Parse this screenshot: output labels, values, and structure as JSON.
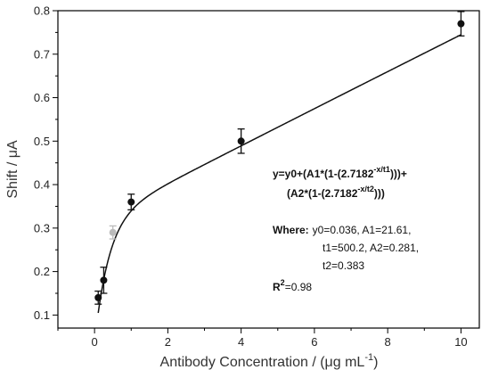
{
  "chart_data": {
    "type": "scatter",
    "xlabel": "Antibody Concentration / (μg mL",
    "xlabel_sup": "-1",
    "xlabel_end": ")",
    "ylabel": "Shift / μA",
    "xlim": [
      -1,
      10.5
    ],
    "ylim": [
      0.07,
      0.8
    ],
    "x_ticks": [
      0,
      2,
      4,
      6,
      8,
      10
    ],
    "y_ticks": [
      0.1,
      0.2,
      0.3,
      0.4,
      0.5,
      0.6,
      0.7,
      0.8
    ],
    "x_tick_labels": [
      "0",
      "2",
      "4",
      "6",
      "8",
      "10"
    ],
    "y_tick_labels": [
      "0.1",
      "0.2",
      "0.3",
      "0.4",
      "0.5",
      "0.6",
      "0.7",
      "0.8"
    ],
    "points": [
      {
        "x": 0.1,
        "y": 0.14,
        "err": 0.015
      },
      {
        "x": 0.25,
        "y": 0.18,
        "err": 0.03
      },
      {
        "x": 1.0,
        "y": 0.36,
        "err": 0.018
      },
      {
        "x": 4.0,
        "y": 0.5,
        "err": 0.028
      },
      {
        "x": 10.0,
        "y": 0.77,
        "err": 0.028
      }
    ],
    "faint_points": [
      {
        "x": 0.5,
        "y": 0.29,
        "err": 0.015
      }
    ],
    "fit": {
      "y0": 0.036,
      "A1": 21.61,
      "t1": 500.2,
      "A2": 0.281,
      "t2": 0.383
    },
    "colors": {
      "marker": "#111111",
      "faint": "#bbbbbb",
      "fit_line": "#111111"
    },
    "annotation": {
      "eq_line1": "y=y0+(A1*(1-(2.7182",
      "eq_line1_sup": "-x/t1",
      "eq_line1_end": ")))+",
      "eq_line2": "(A2*(1-(2.7182",
      "eq_line2_sup": "-x/t2",
      "eq_line2_end": ")))",
      "where_label": "Where:",
      "where_line1": "y0=0.036, A1=21.61,",
      "where_line2": "t1=500.2, A2=0.281,",
      "where_line3": "t2=0.383",
      "r2_label": "R",
      "r2_sup": "2",
      "r2_value": "=0.98"
    }
  }
}
